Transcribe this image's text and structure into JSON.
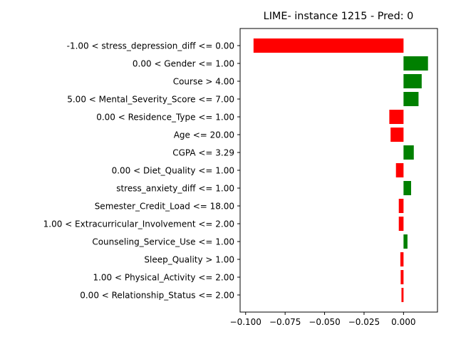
{
  "chart_data": {
    "type": "bar",
    "orientation": "horizontal",
    "title": "LIME- instance 1215 - Pred: 0",
    "xlabel": "",
    "ylabel": "",
    "xlim": [
      -0.1035,
      0.0215
    ],
    "xticks": [
      -0.1,
      -0.075,
      -0.05,
      -0.025,
      0.0
    ],
    "xtick_labels": [
      "−0.100",
      "−0.075",
      "−0.050",
      "−0.025",
      "0.000"
    ],
    "grid": false,
    "legend": "none",
    "colors": {
      "positive": "#008000",
      "negative": "#ff0000"
    },
    "categories": [
      "-1.00 < stress_depression_diff <= 0.00",
      "0.00 < Gender <= 1.00",
      "Course > 4.00",
      "5.00 < Mental_Severity_Score <= 7.00",
      "0.00 < Residence_Type <= 1.00",
      "Age <= 20.00",
      "CGPA <= 3.29",
      "0.00 < Diet_Quality <= 1.00",
      "stress_anxiety_diff <= 1.00",
      "Semester_Credit_Load <= 18.00",
      "1.00 < Extracurricular_Involvement <= 2.00",
      "Counseling_Service_Use <= 1.00",
      "Sleep_Quality > 1.00",
      "1.00 < Physical_Activity <= 2.00",
      "0.00 < Relationship_Status <= 2.00"
    ],
    "values": [
      -0.095,
      0.0155,
      0.0115,
      0.0095,
      -0.009,
      -0.0082,
      0.0065,
      -0.0048,
      0.0048,
      -0.003,
      -0.003,
      0.0025,
      -0.002,
      -0.0018,
      -0.0013
    ]
  }
}
